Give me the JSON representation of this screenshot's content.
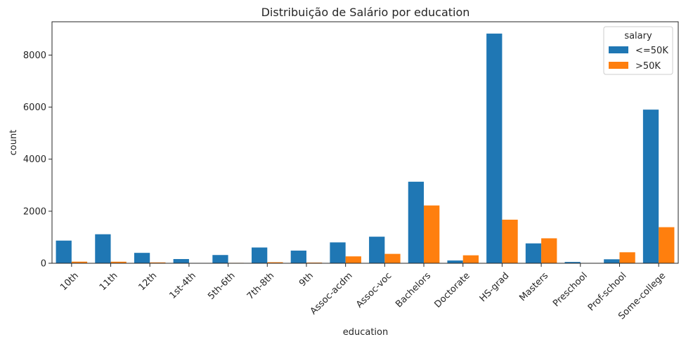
{
  "chart_data": {
    "type": "bar",
    "title": "Distribuição de Salário por education",
    "xlabel": "education",
    "ylabel": "count",
    "ylim": [
      0,
      9280
    ],
    "yticks": [
      0,
      2000,
      4000,
      6000,
      8000
    ],
    "categories": [
      "10th",
      "11th",
      "12th",
      "1st-4th",
      "5th-6th",
      "7th-8th",
      "9th",
      "Assoc-acdm",
      "Assoc-voc",
      "Bachelors",
      "Doctorate",
      "HS-grad",
      "Masters",
      "Preschool",
      "Prof-school",
      "Some-college"
    ],
    "legend_title": "salary",
    "legend_position": "top-right",
    "grid": false,
    "series": [
      {
        "name": "<=50K",
        "color": "#1f77b4",
        "values": [
          871,
          1115,
          400,
          162,
          317,
          606,
          487,
          802,
          1021,
          3134,
          107,
          8826,
          764,
          51,
          153,
          5904
        ]
      },
      {
        "name": ">50K",
        "color": "#ff7f0e",
        "values": [
          62,
          60,
          33,
          6,
          16,
          40,
          27,
          265,
          361,
          2221,
          306,
          1675,
          959,
          0,
          423,
          1387
        ]
      }
    ]
  }
}
